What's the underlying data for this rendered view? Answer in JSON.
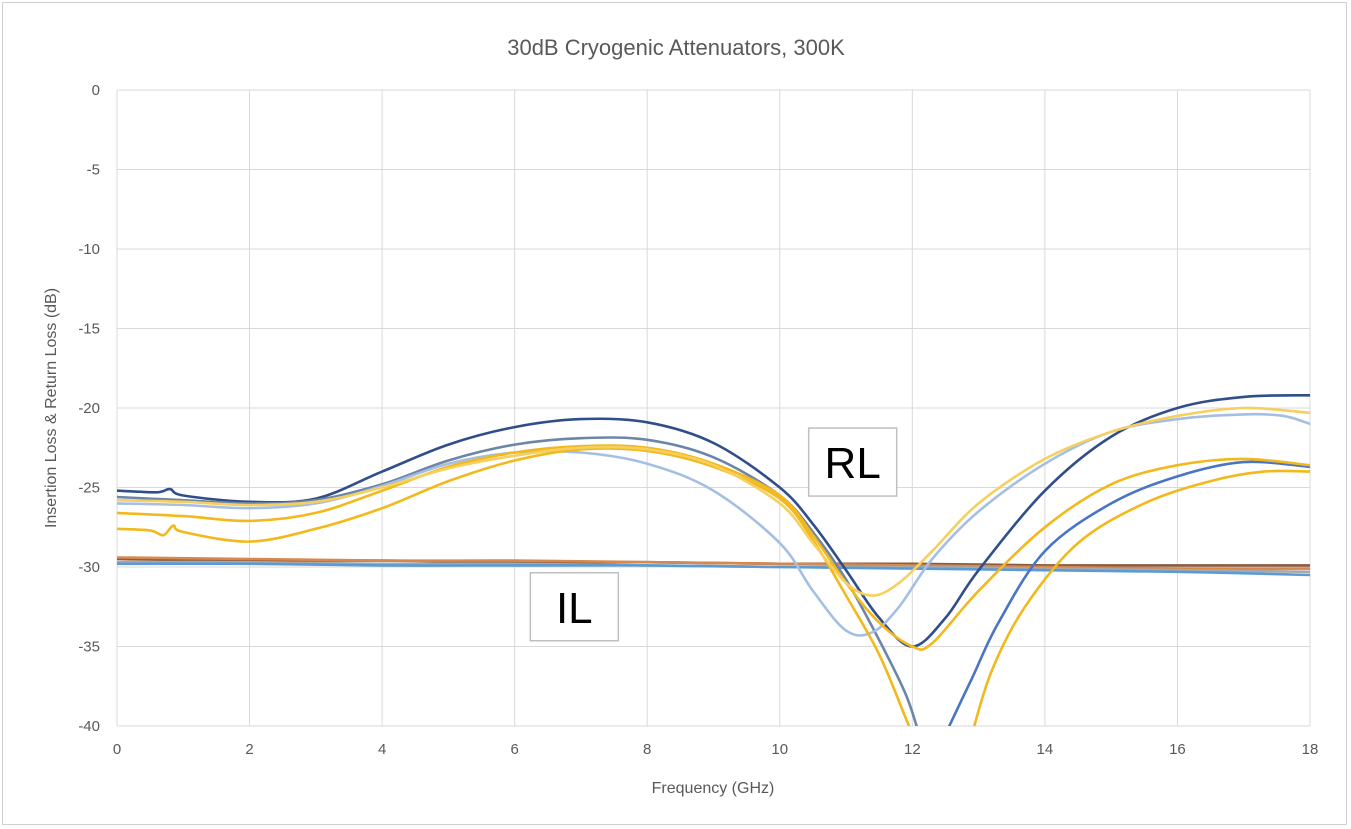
{
  "chart_data": {
    "type": "line",
    "title": "30dB Cryogenic Attenuators, 300K",
    "xlabel": "Frequency (GHz)",
    "ylabel": "Insertion Loss & Return Loss (dB)",
    "xlim": [
      0,
      18
    ],
    "ylim": [
      -40,
      0
    ],
    "x_ticks": [
      0,
      2,
      4,
      6,
      8,
      10,
      12,
      14,
      16,
      18
    ],
    "y_ticks": [
      0,
      -5,
      -10,
      -15,
      -20,
      -25,
      -30,
      -35,
      -40
    ],
    "grid": true,
    "annotations": [
      {
        "text": "RL",
        "x": 11.1,
        "y": -23.4
      },
      {
        "text": "IL",
        "x": 6.9,
        "y": -32.5
      }
    ],
    "colors": {
      "rl_dark_navy": "#2f4e8a",
      "rl_mid_blue": "#4a75c4",
      "rl_steel": "#6d86a8",
      "rl_light_blue": "#a5bfe3",
      "rl_gold": "#f2b81c",
      "rl_light_gold": "#f7cf5c",
      "il_brown": "#8c5a3c",
      "il_orange": "#d6884f",
      "il_gray": "#a8a8a8",
      "il_blue": "#5b9bd5"
    },
    "series": [
      {
        "color_key": "rl_dark_navy",
        "group": "RL",
        "points": [
          [
            0,
            -25.2
          ],
          [
            0.6,
            -25.3
          ],
          [
            0.8,
            -25.1
          ],
          [
            1,
            -25.5
          ],
          [
            2,
            -25.9
          ],
          [
            3,
            -25.7
          ],
          [
            4,
            -24
          ],
          [
            5,
            -22.3
          ],
          [
            6,
            -21.2
          ],
          [
            7,
            -20.7
          ],
          [
            8,
            -20.9
          ],
          [
            9,
            -22.2
          ],
          [
            10,
            -25
          ],
          [
            10.5,
            -27.3
          ],
          [
            11,
            -30.2
          ],
          [
            11.5,
            -33.2
          ],
          [
            12,
            -35.0
          ],
          [
            12.5,
            -33.2
          ],
          [
            13,
            -30.2
          ],
          [
            14,
            -25.2
          ],
          [
            15,
            -21.8
          ],
          [
            16,
            -20.0
          ],
          [
            17,
            -19.3
          ],
          [
            18,
            -19.2
          ]
        ]
      },
      {
        "color_key": "rl_steel",
        "group": "RL",
        "points": [
          [
            0,
            -25.6
          ],
          [
            1,
            -25.8
          ],
          [
            2,
            -26.0
          ],
          [
            3,
            -25.8
          ],
          [
            4,
            -24.8
          ],
          [
            5,
            -23.3
          ],
          [
            6,
            -22.3
          ],
          [
            7,
            -21.9
          ],
          [
            8,
            -22.0
          ],
          [
            9,
            -23.1
          ],
          [
            10,
            -25.5
          ],
          [
            10.5,
            -27.8
          ],
          [
            11,
            -30.8
          ],
          [
            11.5,
            -34.6
          ],
          [
            11.9,
            -38
          ],
          [
            12.1,
            -40.5
          ]
        ]
      },
      {
        "color_key": "rl_light_blue",
        "group": "RL",
        "points": [
          [
            0,
            -26.0
          ],
          [
            1,
            -26.1
          ],
          [
            2,
            -26.3
          ],
          [
            3,
            -26.0
          ],
          [
            4,
            -24.9
          ],
          [
            5,
            -23.5
          ],
          [
            6,
            -22.8
          ],
          [
            7,
            -22.8
          ],
          [
            8,
            -23.5
          ],
          [
            9,
            -25.2
          ],
          [
            10,
            -28.5
          ],
          [
            10.5,
            -31.5
          ],
          [
            11,
            -34.0
          ],
          [
            11.4,
            -34.1
          ],
          [
            11.8,
            -32.5
          ],
          [
            12.3,
            -29.5
          ],
          [
            13,
            -26.5
          ],
          [
            14,
            -23.5
          ],
          [
            15,
            -21.5
          ],
          [
            16,
            -20.7
          ],
          [
            17,
            -20.4
          ],
          [
            17.6,
            -20.5
          ],
          [
            18,
            -21.0
          ]
        ]
      },
      {
        "color_key": "rl_mid_blue",
        "group": "RL",
        "points": [
          [
            12.5,
            -40.5
          ],
          [
            12.9,
            -37.0
          ],
          [
            13.3,
            -33.5
          ],
          [
            14,
            -29.0
          ],
          [
            15,
            -26.0
          ],
          [
            16,
            -24.3
          ],
          [
            17,
            -23.4
          ],
          [
            18,
            -23.7
          ]
        ]
      },
      {
        "color_key": "rl_gold",
        "group": "RL",
        "points": [
          [
            0,
            -26.6
          ],
          [
            1,
            -26.8
          ],
          [
            2,
            -27.1
          ],
          [
            3,
            -26.6
          ],
          [
            4,
            -25.2
          ],
          [
            5,
            -23.7
          ],
          [
            6,
            -22.8
          ],
          [
            7,
            -22.4
          ],
          [
            8,
            -22.5
          ],
          [
            9,
            -23.5
          ],
          [
            10,
            -25.5
          ],
          [
            10.5,
            -28.0
          ],
          [
            11,
            -31.0
          ],
          [
            11.5,
            -33.5
          ],
          [
            12,
            -35.0
          ],
          [
            12.3,
            -34.8
          ],
          [
            13,
            -31.5
          ],
          [
            14,
            -27.5
          ],
          [
            15,
            -24.8
          ],
          [
            16,
            -23.6
          ],
          [
            17,
            -23.2
          ],
          [
            18,
            -23.6
          ]
        ]
      },
      {
        "color_key": "rl_gold",
        "group": "RL",
        "points": [
          [
            0,
            -27.6
          ],
          [
            0.5,
            -27.7
          ],
          [
            0.7,
            -28.0
          ],
          [
            0.85,
            -27.4
          ],
          [
            1,
            -27.8
          ],
          [
            2,
            -28.4
          ],
          [
            3,
            -27.6
          ],
          [
            4,
            -26.3
          ],
          [
            5,
            -24.6
          ],
          [
            6,
            -23.3
          ],
          [
            7,
            -22.6
          ],
          [
            8,
            -22.7
          ],
          [
            9,
            -23.7
          ],
          [
            10,
            -25.7
          ],
          [
            10.5,
            -28.3
          ],
          [
            11,
            -31.8
          ],
          [
            11.5,
            -35.5
          ],
          [
            11.9,
            -39.5
          ],
          [
            12.0,
            -40.5
          ]
        ]
      },
      {
        "color_key": "rl_gold",
        "group": "RL",
        "points": [
          [
            12.9,
            -40.5
          ],
          [
            13.2,
            -36.5
          ],
          [
            13.7,
            -32.5
          ],
          [
            14.5,
            -28.5
          ],
          [
            15.5,
            -26.0
          ],
          [
            16.5,
            -24.6
          ],
          [
            17.3,
            -24.0
          ],
          [
            18,
            -24.0
          ]
        ]
      },
      {
        "color_key": "rl_light_gold",
        "group": "RL",
        "points": [
          [
            0,
            -25.8
          ],
          [
            1,
            -25.9
          ],
          [
            2,
            -26.1
          ],
          [
            3,
            -25.9
          ],
          [
            4,
            -25.0
          ],
          [
            5,
            -23.8
          ],
          [
            6,
            -23.0
          ],
          [
            7,
            -22.5
          ],
          [
            8,
            -22.6
          ],
          [
            9,
            -23.6
          ],
          [
            10,
            -26.0
          ],
          [
            10.5,
            -28.5
          ],
          [
            11,
            -31.0
          ],
          [
            11.4,
            -31.8
          ],
          [
            11.8,
            -31.0
          ],
          [
            12.3,
            -29.0
          ],
          [
            13,
            -26.0
          ],
          [
            14,
            -23.2
          ],
          [
            15,
            -21.5
          ],
          [
            16,
            -20.5
          ],
          [
            17,
            -20.0
          ],
          [
            18,
            -20.3
          ]
        ]
      },
      {
        "color_key": "il_brown",
        "group": "IL",
        "points": [
          [
            0,
            -29.5
          ],
          [
            2,
            -29.6
          ],
          [
            4,
            -29.6
          ],
          [
            6,
            -29.7
          ],
          [
            8,
            -29.7
          ],
          [
            10,
            -29.8
          ],
          [
            12,
            -29.8
          ],
          [
            14,
            -29.9
          ],
          [
            16,
            -29.9
          ],
          [
            18,
            -29.9
          ]
        ]
      },
      {
        "color_key": "il_orange",
        "group": "IL",
        "points": [
          [
            0,
            -29.4
          ],
          [
            2,
            -29.5
          ],
          [
            4,
            -29.6
          ],
          [
            6,
            -29.6
          ],
          [
            8,
            -29.7
          ],
          [
            10,
            -29.8
          ],
          [
            12,
            -29.9
          ],
          [
            14,
            -30.0
          ],
          [
            16,
            -30.1
          ],
          [
            18,
            -30.1
          ]
        ]
      },
      {
        "color_key": "il_gray",
        "group": "IL",
        "points": [
          [
            0,
            -29.7
          ],
          [
            2,
            -29.7
          ],
          [
            4,
            -29.8
          ],
          [
            6,
            -29.8
          ],
          [
            8,
            -29.9
          ],
          [
            10,
            -30.0
          ],
          [
            12,
            -30.0
          ],
          [
            14,
            -30.1
          ],
          [
            16,
            -30.2
          ],
          [
            18,
            -30.3
          ]
        ]
      },
      {
        "color_key": "il_blue",
        "group": "IL",
        "points": [
          [
            0,
            -29.8
          ],
          [
            2,
            -29.8
          ],
          [
            4,
            -29.9
          ],
          [
            6,
            -29.9
          ],
          [
            8,
            -29.9
          ],
          [
            10,
            -30.0
          ],
          [
            12,
            -30.1
          ],
          [
            14,
            -30.2
          ],
          [
            16,
            -30.3
          ],
          [
            18,
            -30.5
          ]
        ]
      }
    ]
  }
}
